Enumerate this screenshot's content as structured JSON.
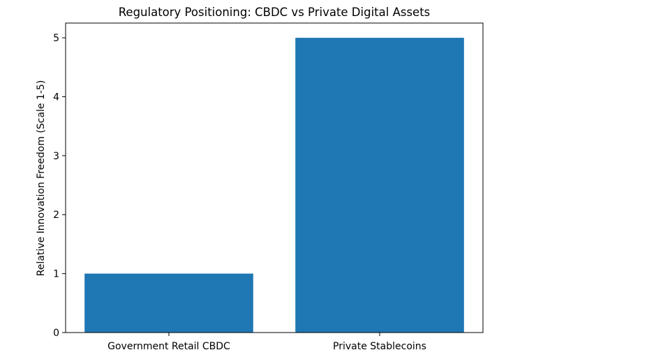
{
  "chart_data": {
    "type": "bar",
    "title": "Regulatory Positioning: CBDC vs Private Digital Assets",
    "xlabel": "",
    "ylabel": "Relative Innovation Freedom (Scale 1-5)",
    "categories": [
      "Government Retail CBDC",
      "Private Stablecoins"
    ],
    "values": [
      1,
      5
    ],
    "ylim": [
      0,
      5.25
    ],
    "yticks": [
      0,
      1,
      2,
      3,
      4,
      5
    ],
    "grid": false,
    "bar_color": "#1f77b4"
  }
}
